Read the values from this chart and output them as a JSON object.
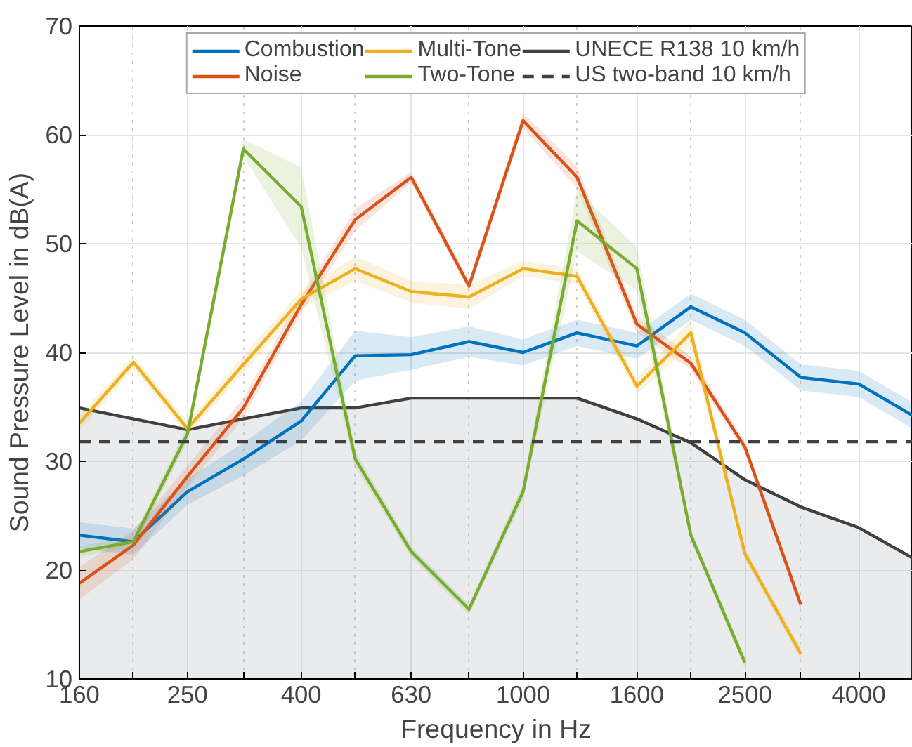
{
  "chart_data": {
    "type": "line",
    "xlabel": "Frequency in Hz",
    "ylabel": "Sound Pressure Level in dB(A)",
    "x": [
      160,
      200,
      250,
      315,
      400,
      500,
      630,
      800,
      1000,
      1250,
      1600,
      2000,
      2500,
      3150,
      4000,
      5000
    ],
    "series": [
      {
        "name": "Combustion",
        "color": "#0072bd",
        "values": [
          23.2,
          22.6,
          27.2,
          30.2,
          33.7,
          39.7,
          39.8,
          41.0,
          40.0,
          41.8,
          40.6,
          44.2,
          41.8,
          37.7,
          37.1,
          34.2
        ],
        "lower": [
          22.0,
          21.4,
          26.0,
          28.7,
          31.9,
          37.4,
          38.4,
          39.6,
          38.8,
          40.6,
          39.4,
          43.0,
          40.6,
          36.5,
          35.9,
          33.0
        ],
        "upper": [
          24.4,
          23.8,
          28.4,
          31.7,
          35.5,
          42.0,
          41.4,
          42.4,
          41.2,
          43.0,
          41.8,
          45.4,
          43.0,
          38.9,
          38.3,
          35.4
        ]
      },
      {
        "name": "Noise",
        "color": "#d95319",
        "values": [
          18.8,
          22.3,
          28.6,
          34.9,
          44.4,
          52.2,
          56.1,
          46.1,
          61.3,
          56.1,
          42.6,
          39.0,
          31.3,
          16.8,
          null,
          null
        ],
        "lower": [
          17.3,
          21.0,
          27.6,
          34.0,
          43.6,
          51.2,
          55.6,
          45.6,
          60.6,
          55.1,
          41.8,
          38.4,
          30.8,
          16.3,
          null,
          null
        ],
        "upper": [
          20.3,
          23.6,
          29.6,
          35.8,
          45.2,
          53.2,
          56.6,
          46.6,
          62.0,
          57.1,
          43.4,
          39.6,
          31.8,
          17.3,
          null,
          null
        ]
      },
      {
        "name": "Multi-Tone",
        "color": "#edb120",
        "values": [
          33.5,
          39.1,
          33.0,
          38.9,
          44.9,
          47.7,
          45.6,
          45.1,
          47.7,
          47.0,
          36.9,
          41.8,
          21.5,
          12.3,
          null,
          null
        ],
        "lower": [
          32.8,
          38.5,
          32.4,
          38.1,
          44.1,
          46.6,
          44.6,
          44.0,
          47.0,
          46.3,
          36.2,
          40.6,
          21.0,
          11.8,
          null,
          null
        ],
        "upper": [
          34.2,
          39.7,
          33.6,
          39.7,
          45.7,
          48.8,
          46.6,
          46.2,
          48.4,
          47.7,
          37.6,
          43.0,
          22.0,
          12.8,
          null,
          null
        ]
      },
      {
        "name": "Two-Tone",
        "color": "#77ac30",
        "values": [
          21.7,
          22.6,
          32.5,
          58.7,
          53.4,
          30.2,
          21.7,
          16.4,
          27.2,
          52.1,
          47.7,
          23.2,
          11.5,
          null,
          null,
          null
        ],
        "lower": [
          21.2,
          22.1,
          31.8,
          58.0,
          49.6,
          29.5,
          21.2,
          15.9,
          26.5,
          49.3,
          45.7,
          22.7,
          11.0,
          null,
          null,
          null
        ],
        "upper": [
          22.2,
          23.1,
          33.2,
          59.6,
          57.0,
          30.9,
          22.2,
          16.9,
          27.9,
          54.9,
          49.7,
          23.7,
          12.0,
          null,
          null,
          null
        ]
      },
      {
        "name": "UNECE R138 10 km/h",
        "type": "area",
        "color": "#404040",
        "values": [
          34.9,
          33.9,
          32.9,
          33.9,
          34.9,
          34.9,
          35.8,
          35.8,
          35.8,
          35.8,
          33.9,
          31.7,
          28.3,
          25.8,
          23.9,
          21.1
        ]
      },
      {
        "name": "US two-band 10 km/h",
        "type": "line",
        "color": "#404040",
        "line_style": "dashed",
        "x": [
          160,
          5000
        ],
        "values": [
          31.8,
          31.8
        ]
      }
    ],
    "xlim": [
      160,
      5000
    ],
    "ylim": [
      10,
      70
    ],
    "xticks": [
      160,
      {
        "value": 200,
        "label": null
      },
      250,
      {
        "value": 315,
        "label": null
      },
      400,
      {
        "value": 500,
        "label": null
      },
      630,
      {
        "value": 800,
        "label": null
      },
      1000,
      {
        "value": 1250,
        "label": null
      },
      1600,
      {
        "value": 2000,
        "label": null
      },
      2500,
      {
        "value": 3150,
        "label": null
      },
      4000
    ],
    "yticks": [
      10,
      20,
      30,
      40,
      50,
      60,
      70
    ],
    "log": "x",
    "grid": true,
    "legend": "top",
    "line_style": "solid",
    "marker": "none"
  }
}
